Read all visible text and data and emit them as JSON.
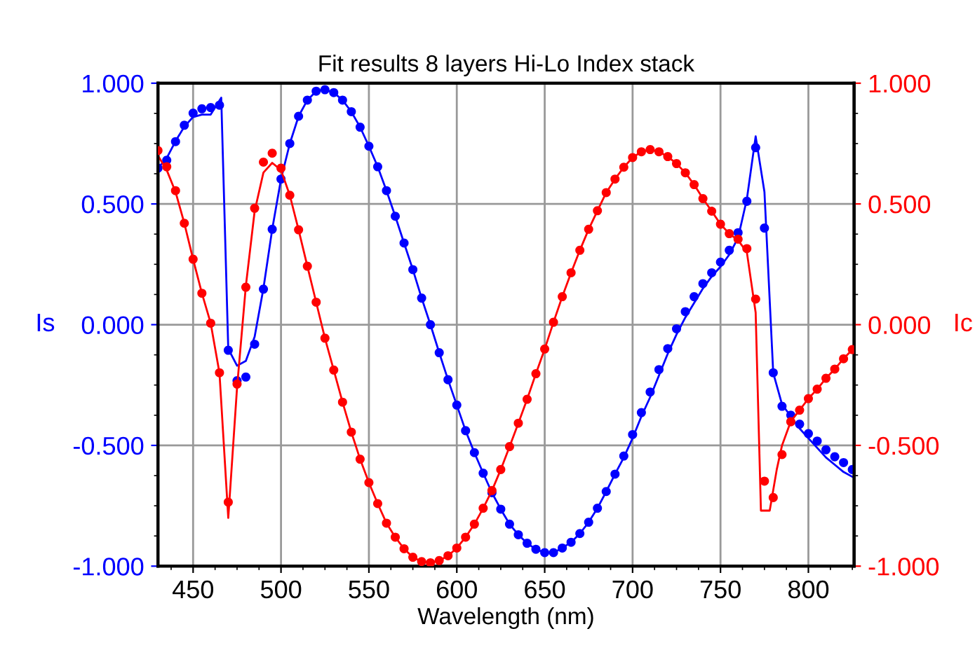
{
  "chart_data": {
    "type": "scatter",
    "title": "Fit results 8 layers Hi-Lo Index stack",
    "xlabel": "Wavelength (nm)",
    "ylabel": "Is",
    "y2label": "Ic",
    "x": [
      430,
      435,
      440,
      445,
      450,
      455,
      460,
      465,
      470,
      475,
      480,
      485,
      490,
      495,
      500,
      505,
      510,
      515,
      520,
      525,
      530,
      535,
      540,
      545,
      550,
      555,
      560,
      565,
      570,
      575,
      580,
      585,
      590,
      595,
      600,
      605,
      610,
      615,
      620,
      625,
      630,
      635,
      640,
      645,
      650,
      655,
      660,
      665,
      670,
      675,
      680,
      685,
      690,
      695,
      700,
      705,
      710,
      715,
      720,
      725,
      730,
      735,
      740,
      745,
      750,
      755,
      760,
      765,
      770,
      775,
      780,
      785,
      790,
      795,
      800,
      805,
      810,
      815,
      820,
      825
    ],
    "series": [
      {
        "axis": "y",
        "color": "#0000ff",
        "marker": "circle",
        "values": [
          0.648,
          0.681,
          0.758,
          0.826,
          0.876,
          0.894,
          0.899,
          0.909,
          -0.106,
          -0.232,
          -0.217,
          -0.081,
          0.147,
          0.395,
          0.603,
          0.75,
          0.863,
          0.93,
          0.967,
          0.973,
          0.961,
          0.93,
          0.882,
          0.818,
          0.739,
          0.654,
          0.555,
          0.449,
          0.338,
          0.228,
          0.11,
          0.0,
          -0.116,
          -0.228,
          -0.333,
          -0.439,
          -0.53,
          -0.615,
          -0.696,
          -0.764,
          -0.826,
          -0.87,
          -0.905,
          -0.93,
          -0.944,
          -0.944,
          -0.925,
          -0.901,
          -0.865,
          -0.818,
          -0.76,
          -0.691,
          -0.619,
          -0.544,
          -0.455,
          -0.364,
          -0.279,
          -0.186,
          -0.099,
          -0.017,
          0.054,
          0.116,
          0.17,
          0.215,
          0.259,
          0.308,
          0.381,
          0.511,
          0.733,
          0.4,
          -0.199,
          -0.338,
          -0.375,
          -0.412,
          -0.451,
          -0.482,
          -0.518,
          -0.547,
          -0.571,
          -0.6
        ]
      },
      {
        "type": "line",
        "axis": "y",
        "color": "#0000ff",
        "marker": "none",
        "line_style": "solid",
        "x": [
          430,
          435,
          440,
          445,
          450,
          455,
          460,
          466,
          470,
          475,
          480,
          485,
          490,
          495,
          500,
          505,
          510,
          515,
          520,
          525,
          530,
          535,
          540,
          545,
          550,
          555,
          560,
          565,
          570,
          575,
          580,
          585,
          590,
          595,
          600,
          605,
          610,
          615,
          620,
          625,
          630,
          635,
          640,
          645,
          650,
          655,
          660,
          665,
          670,
          675,
          680,
          685,
          690,
          695,
          700,
          705,
          710,
          715,
          720,
          725,
          730,
          735,
          740,
          745,
          750,
          755,
          760,
          765,
          770,
          775,
          780,
          785,
          790,
          795,
          800,
          805,
          810,
          815,
          820,
          825
        ],
        "values": [
          0.648,
          0.69,
          0.76,
          0.82,
          0.86,
          0.87,
          0.87,
          0.94,
          -0.1,
          -0.17,
          -0.15,
          -0.05,
          0.15,
          0.395,
          0.603,
          0.75,
          0.863,
          0.93,
          0.967,
          0.973,
          0.961,
          0.93,
          0.882,
          0.818,
          0.739,
          0.654,
          0.555,
          0.449,
          0.338,
          0.228,
          0.11,
          0.0,
          -0.116,
          -0.228,
          -0.333,
          -0.439,
          -0.53,
          -0.615,
          -0.696,
          -0.764,
          -0.826,
          -0.87,
          -0.905,
          -0.93,
          -0.944,
          -0.944,
          -0.925,
          -0.901,
          -0.865,
          -0.818,
          -0.76,
          -0.691,
          -0.619,
          -0.55,
          -0.47,
          -0.38,
          -0.3,
          -0.21,
          -0.12,
          -0.04,
          0.03,
          0.09,
          0.15,
          0.2,
          0.24,
          0.29,
          0.36,
          0.52,
          0.78,
          0.55,
          -0.2,
          -0.33,
          -0.38,
          -0.43,
          -0.47,
          -0.51,
          -0.55,
          -0.58,
          -0.61,
          -0.63
        ]
      },
      {
        "axis": "y2",
        "color": "#ff0000",
        "marker": "circle",
        "values": [
          0.721,
          0.654,
          0.555,
          0.42,
          0.271,
          0.13,
          0.006,
          -0.199,
          -0.735,
          -0.246,
          0.155,
          0.482,
          0.673,
          0.71,
          0.648,
          0.536,
          0.393,
          0.242,
          0.093,
          -0.056,
          -0.188,
          -0.321,
          -0.445,
          -0.557,
          -0.654,
          -0.741,
          -0.822,
          -0.88,
          -0.928,
          -0.963,
          -0.981,
          -0.986,
          -0.977,
          -0.957,
          -0.925,
          -0.88,
          -0.826,
          -0.76,
          -0.687,
          -0.6,
          -0.505,
          -0.408,
          -0.309,
          -0.203,
          -0.101,
          0.01,
          0.116,
          0.215,
          0.308,
          0.395,
          0.472,
          0.547,
          0.603,
          0.652,
          0.692,
          0.716,
          0.725,
          0.716,
          0.696,
          0.667,
          0.629,
          0.58,
          0.522,
          0.47,
          0.416,
          0.377,
          0.354,
          0.315,
          0.106,
          -0.648,
          -0.716,
          -0.538,
          -0.402,
          -0.354,
          -0.306,
          -0.267,
          -0.222,
          -0.184,
          -0.141,
          -0.103
        ]
      },
      {
        "type": "line",
        "axis": "y2",
        "color": "#ff0000",
        "marker": "none",
        "line_style": "solid",
        "x": [
          430,
          435,
          440,
          445,
          450,
          455,
          460,
          465,
          470,
          475,
          480,
          485,
          490,
          495,
          500,
          505,
          510,
          515,
          520,
          525,
          530,
          535,
          540,
          545,
          550,
          555,
          560,
          565,
          570,
          575,
          580,
          585,
          590,
          595,
          600,
          605,
          610,
          615,
          620,
          625,
          630,
          635,
          640,
          645,
          650,
          655,
          660,
          665,
          670,
          675,
          680,
          685,
          690,
          695,
          700,
          705,
          710,
          715,
          720,
          725,
          730,
          735,
          740,
          745,
          750,
          755,
          760,
          765,
          770,
          773,
          778,
          782,
          785,
          790,
          795,
          800,
          805,
          810,
          815,
          820,
          825
        ],
        "values": [
          0.7,
          0.64,
          0.55,
          0.42,
          0.271,
          0.13,
          0.006,
          -0.2,
          -0.8,
          -0.26,
          0.16,
          0.47,
          0.63,
          0.67,
          0.64,
          0.536,
          0.393,
          0.242,
          0.093,
          -0.056,
          -0.188,
          -0.321,
          -0.445,
          -0.557,
          -0.654,
          -0.741,
          -0.822,
          -0.88,
          -0.928,
          -0.963,
          -0.981,
          -0.986,
          -0.977,
          -0.957,
          -0.925,
          -0.88,
          -0.826,
          -0.76,
          -0.687,
          -0.6,
          -0.505,
          -0.408,
          -0.309,
          -0.203,
          -0.101,
          0.01,
          0.116,
          0.215,
          0.308,
          0.395,
          0.472,
          0.547,
          0.603,
          0.652,
          0.692,
          0.716,
          0.725,
          0.716,
          0.696,
          0.667,
          0.629,
          0.58,
          0.522,
          0.47,
          0.416,
          0.377,
          0.35,
          0.3,
          0.05,
          -0.77,
          -0.77,
          -0.6,
          -0.5,
          -0.4,
          -0.354,
          -0.306,
          -0.267,
          -0.222,
          -0.184,
          -0.141,
          -0.103
        ]
      }
    ],
    "xlim": [
      430,
      826
    ],
    "xticks": [
      450,
      500,
      550,
      600,
      650,
      700,
      750,
      800
    ],
    "ylim": [
      -1,
      1
    ],
    "yticks": [
      {
        "value": -1,
        "label": "-1.000"
      },
      {
        "value": -0.5,
        "label": "-0.500"
      },
      {
        "value": 0,
        "label": "0.000"
      },
      {
        "value": 0.5,
        "label": "0.500"
      },
      {
        "value": 1,
        "label": "1.000"
      }
    ],
    "y2lim": [
      -1,
      1
    ],
    "y2ticks": [
      {
        "value": -1,
        "label": "-1.000"
      },
      {
        "value": -0.5,
        "label": "-0.500"
      },
      {
        "value": 0,
        "label": "0.000"
      },
      {
        "value": 0.5,
        "label": "0.500"
      },
      {
        "value": 1,
        "label": "1.000"
      }
    ],
    "grid": true,
    "legend": false
  }
}
